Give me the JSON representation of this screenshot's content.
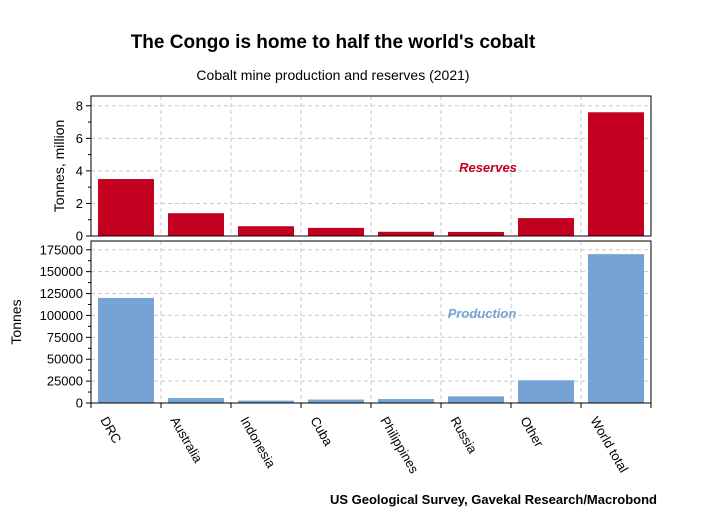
{
  "chart_data": [
    {
      "type": "bar",
      "title": "The Congo is home to half the world's cobalt",
      "subtitle": "Cobalt mine production and reserves (2021)",
      "series_label": "Reserves",
      "ylabel": "Tonnes, million",
      "ylim": [
        0,
        8.6
      ],
      "yticks": [
        0,
        2,
        4,
        6,
        8
      ],
      "categories": [
        "DRC",
        "Australia",
        "Indonesia",
        "Cuba",
        "Philippines",
        "Russia",
        "Other",
        "World total"
      ],
      "values": [
        3.5,
        1.4,
        0.6,
        0.5,
        0.26,
        0.25,
        1.1,
        7.6
      ],
      "color": "#c40020",
      "grid": true
    },
    {
      "type": "bar",
      "series_label": "Production",
      "ylabel": "Tonnes",
      "ylim": [
        0,
        185000
      ],
      "yticks": [
        0,
        25000,
        50000,
        75000,
        100000,
        125000,
        150000,
        175000
      ],
      "categories": [
        "DRC",
        "Australia",
        "Indonesia",
        "Cuba",
        "Philippines",
        "Russia",
        "Other",
        "World total"
      ],
      "values": [
        120000,
        5600,
        2700,
        3900,
        4500,
        7600,
        26000,
        170000
      ],
      "color": "#74a3d4",
      "grid": true
    }
  ],
  "source": "US Geological Survey, Gavekal Research/Macrobond"
}
